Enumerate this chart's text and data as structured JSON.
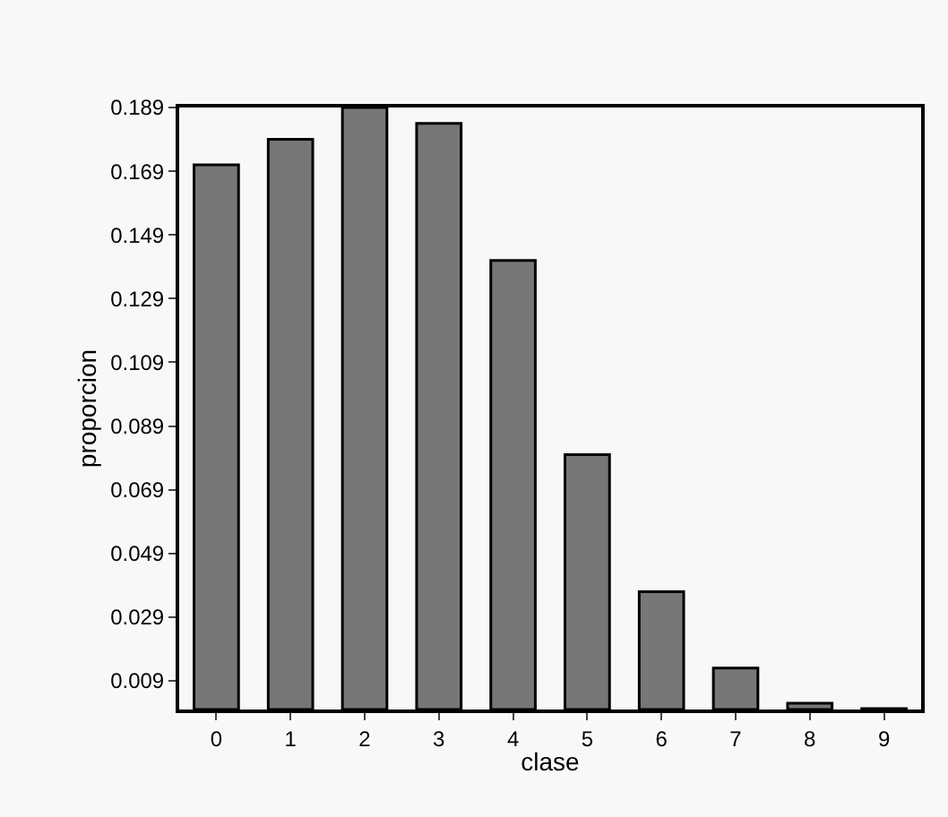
{
  "chart_data": {
    "type": "bar",
    "xlabel": "clase",
    "ylabel": "proporcion",
    "categories": [
      "0",
      "1",
      "2",
      "3",
      "4",
      "5",
      "6",
      "7",
      "8",
      "9"
    ],
    "values": [
      0.171,
      0.179,
      0.189,
      0.184,
      0.141,
      0.08,
      0.037,
      0.013,
      0.002,
      0.0003
    ],
    "color": "#777777",
    "ylim": [
      0,
      0.189
    ],
    "yticks": [
      0.009,
      0.029,
      0.049,
      0.069,
      0.089,
      0.109,
      0.129,
      0.149,
      0.169,
      0.189
    ],
    "grid": false,
    "legend": false
  }
}
